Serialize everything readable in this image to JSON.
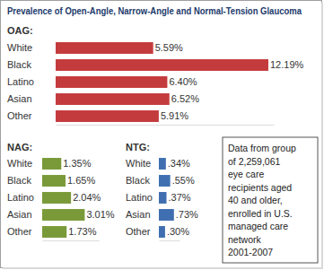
{
  "title": "Prevalence of Open-Angle, Narrow-Angle and Normal-Tension Glaucoma",
  "annotation": [
    "Data from group",
    "of 2,259,061",
    "eye care",
    "recipients aged",
    "40 and older,",
    "enrolled in U.S.",
    "managed care",
    "network",
    "2001-2007"
  ],
  "chart_data": [
    {
      "type": "bar",
      "orientation": "horizontal",
      "title": "OAG:",
      "categories": [
        "White",
        "Black",
        "Latino",
        "Asian",
        "Other"
      ],
      "values": [
        5.59,
        12.19,
        6.4,
        6.52,
        5.91
      ],
      "value_labels": [
        "5.59%",
        "12.19%",
        "6.40%",
        "6.52%",
        "5.91%"
      ],
      "color": "#c43b3d",
      "xlim": [
        0,
        12.5
      ],
      "data_labels": true,
      "tick_labels": "y"
    },
    {
      "type": "bar",
      "orientation": "horizontal",
      "title": "NAG:",
      "categories": [
        "White",
        "Black",
        "Latino",
        "Asian",
        "Other"
      ],
      "values": [
        1.35,
        1.65,
        2.04,
        3.01,
        1.73
      ],
      "value_labels": [
        "1.35%",
        "1.65%",
        "2.04%",
        "3.01%",
        "1.73%"
      ],
      "color": "#7a9a3a",
      "xlim": [
        0,
        4
      ],
      "data_labels": true,
      "tick_labels": "y"
    },
    {
      "type": "bar",
      "orientation": "horizontal",
      "title": "NTG:",
      "categories": [
        "White",
        "Black",
        "Latino",
        "Asian",
        "Other"
      ],
      "values": [
        0.34,
        0.55,
        0.37,
        0.73,
        0.3
      ],
      "value_labels": [
        ".34%",
        ".55%",
        ".37%",
        ".73%",
        ".30%"
      ],
      "color": "#3f6fb0",
      "xlim": [
        0,
        1
      ],
      "data_labels": true,
      "tick_labels": "y"
    }
  ]
}
